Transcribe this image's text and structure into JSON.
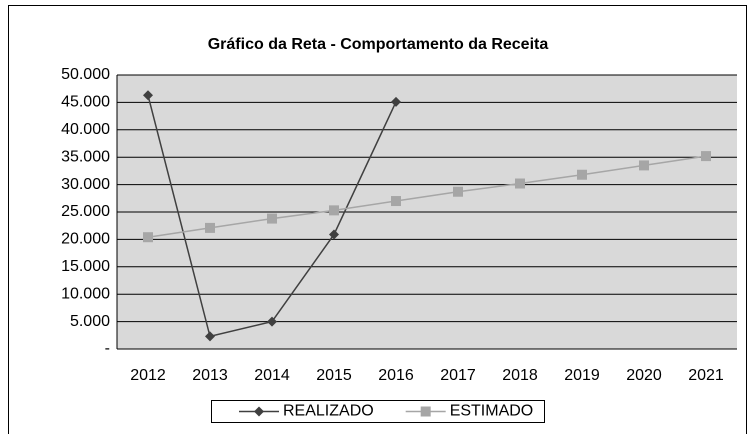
{
  "chart_data": {
    "type": "line",
    "title": "Gráfico da Reta - Comportamento da Receita",
    "categories": [
      "2012",
      "2013",
      "2014",
      "2015",
      "2016",
      "2017",
      "2018",
      "2019",
      "2020",
      "2021"
    ],
    "series": [
      {
        "name": "REALIZADO",
        "color": "#404040",
        "marker": "diamond",
        "values": [
          46300,
          2300,
          5000,
          20900,
          45100,
          null,
          null,
          null,
          null,
          null
        ]
      },
      {
        "name": "ESTIMADO",
        "color": "#a6a6a6",
        "marker": "square",
        "values": [
          20400,
          22100,
          23800,
          25300,
          27000,
          28700,
          30200,
          31800,
          33500,
          35200
        ]
      }
    ],
    "ylim": [
      0,
      50000
    ],
    "yticks": [
      {
        "value": 0,
        "label": "-"
      },
      {
        "value": 5000,
        "label": "5.000"
      },
      {
        "value": 10000,
        "label": "10.000"
      },
      {
        "value": 15000,
        "label": "15.000"
      },
      {
        "value": 20000,
        "label": "20.000"
      },
      {
        "value": 25000,
        "label": "25.000"
      },
      {
        "value": 30000,
        "label": "30.000"
      },
      {
        "value": 35000,
        "label": "35.000"
      },
      {
        "value": 40000,
        "label": "40.000"
      },
      {
        "value": 45000,
        "label": "45.000"
      },
      {
        "value": 50000,
        "label": "50.000"
      }
    ],
    "grid": true,
    "legend": "bottom"
  }
}
